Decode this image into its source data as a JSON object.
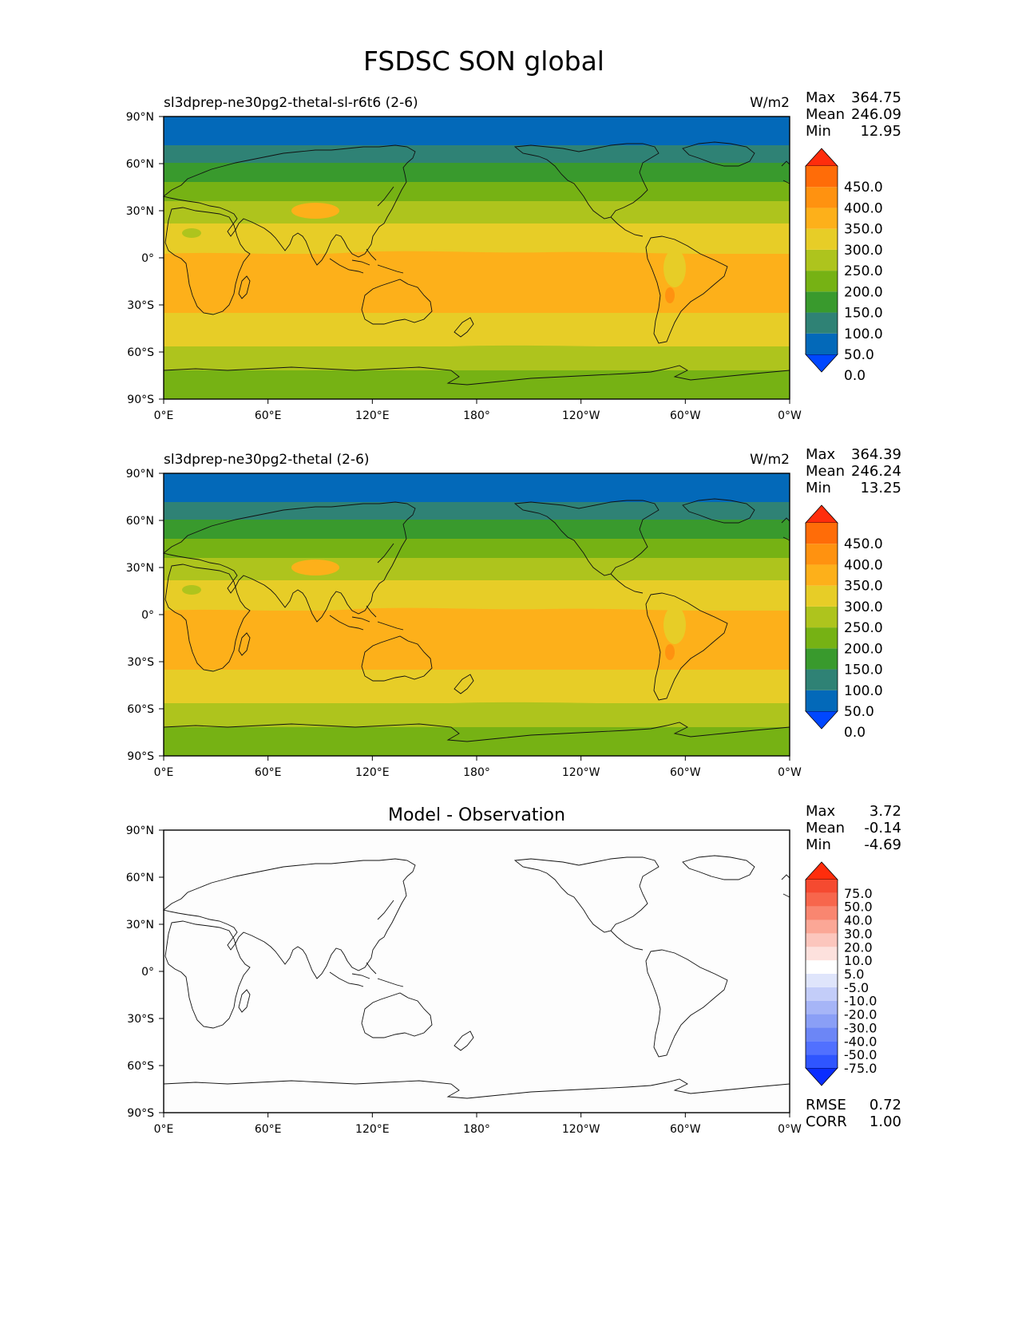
{
  "title": "FSDSC SON global",
  "lon_ticks": [
    "0°E",
    "60°E",
    "120°E",
    "180°",
    "120°W",
    "60°W",
    "0°W"
  ],
  "lat_ticks": [
    "90°N",
    "60°N",
    "30°N",
    "0°",
    "30°S",
    "60°S",
    "90°S"
  ],
  "panels": [
    {
      "id": "test",
      "title_left": "sl3dprep-ne30pg2-thetal-sl-r6t6 (2-6)",
      "title_center": "",
      "units": "W/m2",
      "stats": [
        {
          "label": "Max",
          "value": "364.75"
        },
        {
          "label": "Mean",
          "value": "246.09"
        },
        {
          "label": "Min",
          "value": "12.95"
        }
      ],
      "colorbar": {
        "labels": [
          "450.0",
          "400.0",
          "350.0",
          "300.0",
          "250.0",
          "200.0",
          "150.0",
          "100.0",
          "50.0",
          "0.0"
        ],
        "colors": [
          "#0047ff",
          "#0369b9",
          "#2f8275",
          "#399a2d",
          "#76b214",
          "#aec41d",
          "#e7cd27",
          "#fdb01a",
          "#ff9210",
          "#ff6c08",
          "#ff2d0c"
        ]
      },
      "map": "full"
    },
    {
      "id": "ref",
      "title_left": "sl3dprep-ne30pg2-thetal (2-6)",
      "title_center": "",
      "units": "W/m2",
      "stats": [
        {
          "label": "Max",
          "value": "364.39"
        },
        {
          "label": "Mean",
          "value": "246.24"
        },
        {
          "label": "Min",
          "value": "13.25"
        }
      ],
      "colorbar": {
        "labels": [
          "450.0",
          "400.0",
          "350.0",
          "300.0",
          "250.0",
          "200.0",
          "150.0",
          "100.0",
          "50.0",
          "0.0"
        ],
        "colors": [
          "#0047ff",
          "#0369b9",
          "#2f8275",
          "#399a2d",
          "#76b214",
          "#aec41d",
          "#e7cd27",
          "#fdb01a",
          "#ff9210",
          "#ff6c08",
          "#ff2d0c"
        ]
      },
      "map": "full"
    },
    {
      "id": "diff",
      "title_left": "",
      "title_center": "Model - Observation",
      "units": "",
      "stats": [
        {
          "label": "Max",
          "value": "3.72"
        },
        {
          "label": "Mean",
          "value": "-0.14"
        },
        {
          "label": "Min",
          "value": "-4.69"
        }
      ],
      "colorbar": {
        "labels": [
          "75.0",
          "50.0",
          "40.0",
          "30.0",
          "20.0",
          "10.0",
          "5.0",
          "-5.0",
          "-10.0",
          "-20.0",
          "-30.0",
          "-40.0",
          "-50.0",
          "-75.0"
        ],
        "colors": [
          "#0a2dff",
          "#2f55ff",
          "#5170ff",
          "#6c86f6",
          "#8a9ff6",
          "#a6b5f7",
          "#c3cdf9",
          "#dfe5fb",
          "#ffffff",
          "#fde1dd",
          "#fcc6bd",
          "#fba796",
          "#f98670",
          "#f7664c",
          "#f54a30",
          "#ff2d0c"
        ]
      },
      "map": "diff",
      "extra_stats": [
        {
          "label": "RMSE",
          "value": "0.72"
        },
        {
          "label": "CORR",
          "value": "1.00"
        }
      ]
    }
  ]
}
